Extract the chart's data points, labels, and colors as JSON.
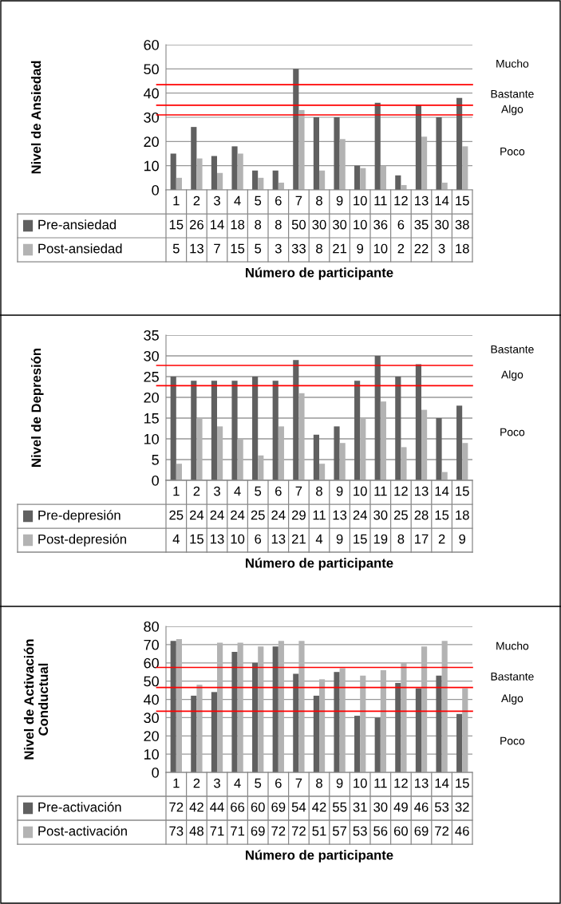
{
  "chart_data": [
    {
      "type": "bar",
      "ylabel": "Nivel de Ansiedad",
      "xlabel": "Número de participante",
      "categories": [
        "1",
        "2",
        "3",
        "4",
        "5",
        "6",
        "7",
        "8",
        "9",
        "10",
        "11",
        "12",
        "13",
        "14",
        "15"
      ],
      "series": [
        {
          "name": "Pre-ansiedad",
          "color": "#606060",
          "values": [
            15,
            26,
            14,
            18,
            8,
            8,
            50,
            30,
            30,
            10,
            36,
            6,
            35,
            30,
            38
          ]
        },
        {
          "name": "Post-ansiedad",
          "color": "#b3b3b3",
          "values": [
            5,
            13,
            7,
            15,
            5,
            3,
            33,
            8,
            21,
            9,
            10,
            2,
            22,
            3,
            18
          ]
        }
      ],
      "ylim": [
        0,
        60
      ],
      "yticks": [
        0,
        10,
        20,
        30,
        40,
        50,
        60
      ],
      "grid": "y",
      "data_labels": true,
      "legend": "bottom",
      "ref_lines": [
        {
          "axis": "y",
          "value": 43.5,
          "color": "#ff0000"
        },
        {
          "axis": "y",
          "value": 35,
          "color": "#ff0000"
        },
        {
          "axis": "y",
          "value": 31,
          "color": "#ff0000"
        }
      ],
      "annotations": [
        "Mucho",
        "Bastante",
        "Algo",
        "Poco"
      ]
    },
    {
      "type": "bar",
      "ylabel": "Nivel de Depresión",
      "xlabel": "Número de participante",
      "categories": [
        "1",
        "2",
        "3",
        "4",
        "5",
        "6",
        "7",
        "8",
        "9",
        "10",
        "11",
        "12",
        "13",
        "14",
        "15"
      ],
      "series": [
        {
          "name": "Pre-depresión",
          "color": "#606060",
          "values": [
            25,
            24,
            24,
            24,
            25,
            24,
            29,
            11,
            13,
            24,
            30,
            25,
            28,
            15,
            18
          ]
        },
        {
          "name": "Post-depresión",
          "color": "#b3b3b3",
          "values": [
            4,
            15,
            13,
            10,
            6,
            13,
            21,
            4,
            9,
            15,
            19,
            8,
            17,
            2,
            9
          ]
        }
      ],
      "ylim": [
        0,
        35
      ],
      "yticks": [
        0,
        5,
        10,
        15,
        20,
        25,
        30,
        35
      ],
      "grid": "y",
      "data_labels": true,
      "legend": "bottom",
      "ref_lines": [
        {
          "axis": "y",
          "value": 27.7,
          "color": "#ff0000"
        },
        {
          "axis": "y",
          "value": 22.8,
          "color": "#ff0000"
        }
      ],
      "annotations": [
        "Bastante",
        "Algo",
        "Poco"
      ]
    },
    {
      "type": "bar",
      "ylabel": "Nivel de Activación Conductual",
      "xlabel": "Número de participante",
      "categories": [
        "1",
        "2",
        "3",
        "4",
        "5",
        "6",
        "7",
        "8",
        "9",
        "10",
        "11",
        "12",
        "13",
        "14",
        "15"
      ],
      "series": [
        {
          "name": "Pre-activación",
          "color": "#606060",
          "values": [
            72,
            42,
            44,
            66,
            60,
            69,
            54,
            42,
            55,
            31,
            30,
            49,
            46,
            53,
            32
          ]
        },
        {
          "name": "Post-activación",
          "color": "#b3b3b3",
          "values": [
            73,
            48,
            71,
            71,
            69,
            72,
            72,
            51,
            57,
            53,
            56,
            60,
            69,
            72,
            46
          ]
        }
      ],
      "ylim": [
        0,
        80
      ],
      "yticks": [
        0,
        10,
        20,
        30,
        40,
        50,
        60,
        70,
        80
      ],
      "grid": "y",
      "data_labels": true,
      "legend": "bottom",
      "ref_lines": [
        {
          "axis": "y",
          "value": 57.5,
          "color": "#ff0000"
        },
        {
          "axis": "y",
          "value": 46.5,
          "color": "#ff0000"
        },
        {
          "axis": "y",
          "value": 33.5,
          "color": "#ff0000"
        }
      ],
      "annotations": [
        "Mucho",
        "Bastante",
        "Algo",
        "Poco"
      ]
    }
  ]
}
